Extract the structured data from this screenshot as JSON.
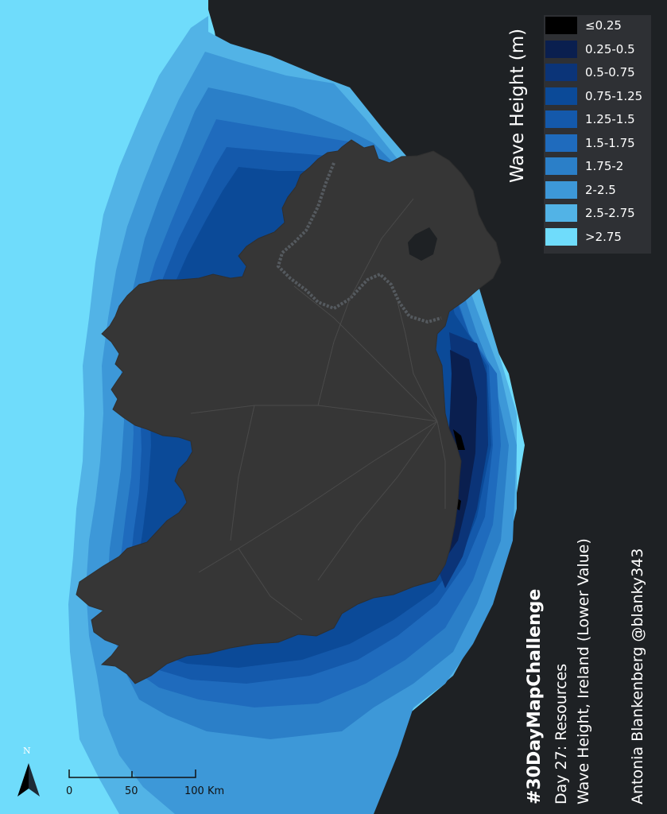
{
  "legend": {
    "title": "Wave Height (m)",
    "classes": [
      {
        "label": "≤0.25",
        "color": "#000000"
      },
      {
        "label": "0.25-0.5",
        "color": "#0a1f4f"
      },
      {
        "label": "0.5-0.75",
        "color": "#0b3478"
      },
      {
        "label": "0.75-1.25",
        "color": "#0b4a98"
      },
      {
        "label": "1.25-1.5",
        "color": "#1459ab"
      },
      {
        "label": "1.5-1.75",
        "color": "#1f6bbd"
      },
      {
        "label": "1.75-2",
        "color": "#2b7fc8"
      },
      {
        "label": "2-2.5",
        "color": "#3d98d8"
      },
      {
        "label": "2.5-2.75",
        "color": "#52b3e6"
      },
      {
        "label": ">2.75",
        "color": "#6fdcfb"
      }
    ]
  },
  "credits": {
    "hashtag": "#30DayMapChallenge",
    "day": "Day 27: Resources",
    "subtitle": "Wave Height, Ireland (Lower Value)",
    "author": "Antonia Blankenberg @blanky343"
  },
  "north_arrow": {
    "label": "N"
  },
  "scale_bar": {
    "ticks": [
      "0",
      "50",
      "100 Km"
    ]
  },
  "colors": {
    "land": "#363636",
    "no_data": "#1e2124"
  }
}
